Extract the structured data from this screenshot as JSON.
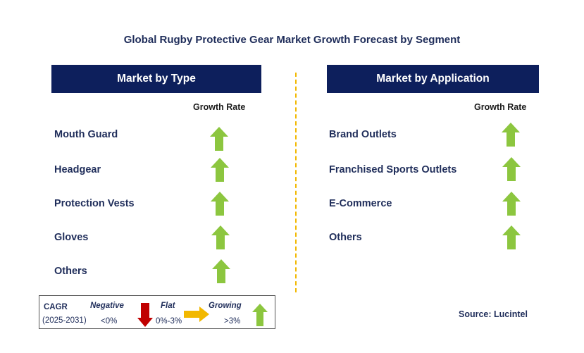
{
  "title": "Global Rugby Protective Gear Market Growth Forecast by Segment",
  "left_panel": {
    "header": "Market by Type",
    "growth_rate_label": "Growth Rate",
    "items": [
      {
        "label": "Mouth Guard",
        "trend": "growing"
      },
      {
        "label": "Headgear",
        "trend": "growing"
      },
      {
        "label": "Protection Vests",
        "trend": "growing"
      },
      {
        "label": "Gloves",
        "trend": "growing"
      },
      {
        "label": "Others",
        "trend": "growing"
      }
    ]
  },
  "right_panel": {
    "header": "Market by Application",
    "growth_rate_label": "Growth Rate",
    "items": [
      {
        "label": "Brand Outlets",
        "trend": "growing"
      },
      {
        "label": "Franchised Sports Outlets",
        "trend": "growing"
      },
      {
        "label": "E-Commerce",
        "trend": "growing"
      },
      {
        "label": "Others",
        "trend": "growing"
      }
    ]
  },
  "legend": {
    "cagr_label": "CAGR",
    "period": "(2025-2031)",
    "negative_label": "Negative",
    "negative_range": "<0%",
    "flat_label": "Flat",
    "flat_range": "0%-3%",
    "growing_label": "Growing",
    "growing_range": ">3%"
  },
  "source": "Source: Lucintel",
  "colors": {
    "header_bg": "#0d1f5c",
    "growing_arrow": "#8cc63f",
    "negative_arrow": "#c00000",
    "flat_arrow": "#f2b800",
    "divider": "#f2b800"
  }
}
